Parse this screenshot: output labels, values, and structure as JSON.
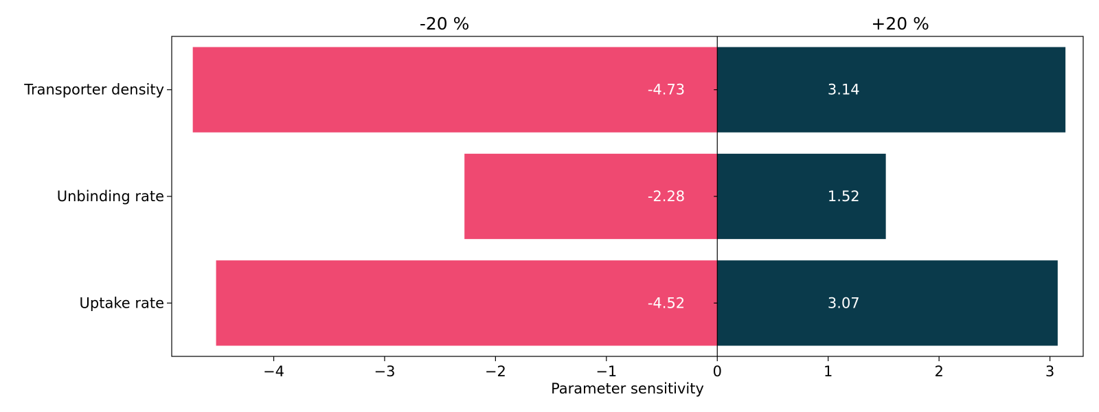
{
  "chart_data": {
    "type": "bar",
    "orientation": "horizontal",
    "categories": [
      "Transporter density",
      "Unbinding rate",
      "Uptake rate"
    ],
    "series": [
      {
        "name": "-20 %",
        "values": [
          -4.73,
          -2.28,
          -4.52
        ],
        "color": "#EF4971"
      },
      {
        "name": "+20 %",
        "values": [
          3.14,
          1.52,
          3.07
        ],
        "color": "#0A3A4B"
      }
    ],
    "data_labels": {
      "-20 %": [
        "-4.73",
        "-2.28",
        "-4.52"
      ],
      "+20 %": [
        "3.14",
        "1.52",
        "3.07"
      ]
    },
    "xlabel": "Parameter sensitivity",
    "ylabel": "",
    "title": "",
    "xlim": [
      -4.92,
      3.3
    ],
    "x_ticks": [
      -4,
      -3,
      -2,
      -1,
      0,
      1,
      2,
      3
    ],
    "x_tick_labels": [
      "−4",
      "−3",
      "−2",
      "−1",
      "0",
      "1",
      "2",
      "3"
    ],
    "grid": false,
    "legend": "none",
    "label_color": "#ffffff",
    "axis_color": "#000000"
  }
}
